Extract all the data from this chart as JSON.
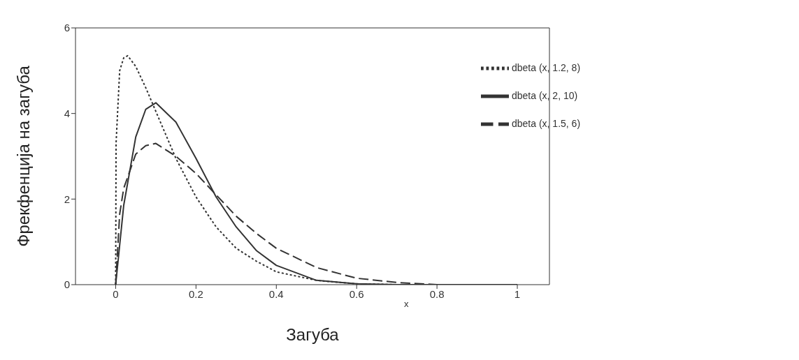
{
  "chart_data": {
    "type": "line",
    "xlabel": "Загуба",
    "ylabel": "Фрекфенција на загуба",
    "annotations": [
      "x"
    ],
    "xlim": [
      -0.1,
      1.08
    ],
    "xticks": [
      0,
      0.2,
      0.4,
      0.6,
      0.8,
      1
    ],
    "ylim": [
      0,
      6
    ],
    "yticks": [
      0,
      2,
      4,
      6
    ],
    "grid": false,
    "legend": "top right",
    "marker": "none",
    "series": [
      {
        "name": "dbeta (x, 1.2, 8)",
        "color": "#333333",
        "line_style": "dotted",
        "x": [
          0,
          0.001,
          0.01,
          0.02,
          0.03,
          0.05,
          0.075,
          0.1,
          0.15,
          0.2,
          0.25,
          0.3,
          0.35,
          0.4,
          0.5,
          0.6,
          0.7,
          1
        ],
        "values": [
          0,
          3.3,
          5.0,
          5.3,
          5.35,
          5.1,
          4.6,
          4.05,
          2.95,
          2.05,
          1.35,
          0.85,
          0.55,
          0.3,
          0.1,
          0.02,
          0,
          0
        ]
      },
      {
        "name": "dbeta (x, 2, 10)",
        "color": "#333333",
        "line_style": "solid",
        "x": [
          0,
          0.02,
          0.05,
          0.075,
          0.1,
          0.15,
          0.2,
          0.25,
          0.3,
          0.35,
          0.4,
          0.5,
          0.6,
          0.7,
          1
        ],
        "values": [
          0,
          1.85,
          3.45,
          4.1,
          4.25,
          3.8,
          2.95,
          2.05,
          1.35,
          0.8,
          0.45,
          0.1,
          0.02,
          0,
          0
        ]
      },
      {
        "name": "dbeta (x, 1.5, 6)",
        "color": "#333333",
        "line_style": "dashed",
        "x": [
          0,
          0.01,
          0.02,
          0.05,
          0.075,
          0.1,
          0.15,
          0.2,
          0.25,
          0.3,
          0.35,
          0.4,
          0.5,
          0.6,
          0.7,
          0.8,
          1
        ],
        "values": [
          0,
          1.65,
          2.25,
          3.05,
          3.25,
          3.3,
          3.0,
          2.6,
          2.1,
          1.6,
          1.2,
          0.85,
          0.4,
          0.15,
          0.05,
          0,
          0
        ]
      }
    ]
  }
}
